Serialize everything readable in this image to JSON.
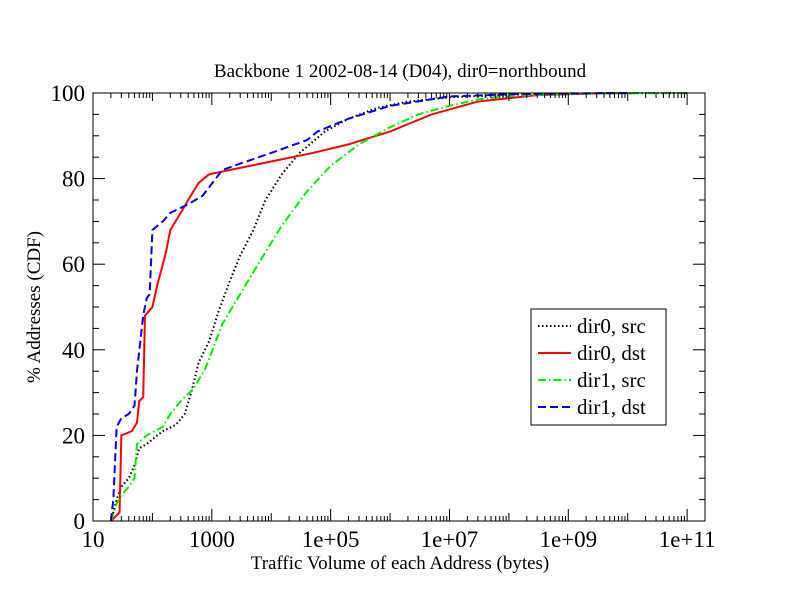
{
  "chart_data": {
    "type": "line",
    "title": "Backbone 1 2002-08-14 (D04), dir0=northbound",
    "xlabel": "Traffic Volume of each Address (bytes)",
    "ylabel": "% Addresses (CDF)",
    "x_scale": "log",
    "xlim": [
      10,
      200000000000
    ],
    "ylim": [
      0,
      100
    ],
    "x_ticks": [
      10,
      1000,
      100000,
      10000000,
      1000000000,
      100000000000
    ],
    "x_tick_labels": [
      "10",
      "1000",
      "1e+05",
      "1e+07",
      "1e+09",
      "1e+11"
    ],
    "y_ticks": [
      0,
      20,
      40,
      60,
      80,
      100
    ],
    "y_tick_labels": [
      "0",
      "20",
      "40",
      "60",
      "80",
      "100"
    ],
    "grid": false,
    "legend_position": "right",
    "series": [
      {
        "name": "dir0, src",
        "color": "#000000",
        "dash": "dotted",
        "points": [
          [
            20,
            0
          ],
          [
            22,
            2
          ],
          [
            25,
            5
          ],
          [
            30,
            8
          ],
          [
            40,
            10
          ],
          [
            50,
            13
          ],
          [
            60,
            17
          ],
          [
            80,
            18
          ],
          [
            150,
            21
          ],
          [
            250,
            22.5
          ],
          [
            350,
            25
          ],
          [
            450,
            30
          ],
          [
            600,
            37
          ],
          [
            900,
            42
          ],
          [
            1300,
            49
          ],
          [
            2000,
            56
          ],
          [
            3000,
            62
          ],
          [
            5000,
            68
          ],
          [
            8000,
            75
          ],
          [
            15000,
            81
          ],
          [
            30000,
            86
          ],
          [
            80000,
            91
          ],
          [
            200000,
            94
          ],
          [
            600000,
            96.5
          ],
          [
            2000000,
            98
          ],
          [
            10000000,
            99
          ],
          [
            100000000,
            99.6
          ],
          [
            1000000000,
            99.85
          ],
          [
            10000000000,
            99.95
          ],
          [
            100000000000,
            100
          ]
        ]
      },
      {
        "name": "dir0, dst",
        "color": "#ff0000",
        "dash": "solid",
        "points": [
          [
            20,
            0
          ],
          [
            28,
            2
          ],
          [
            30,
            20
          ],
          [
            45,
            21
          ],
          [
            55,
            23
          ],
          [
            60,
            28
          ],
          [
            70,
            29
          ],
          [
            75,
            48
          ],
          [
            100,
            50
          ],
          [
            120,
            55
          ],
          [
            150,
            60
          ],
          [
            170,
            63
          ],
          [
            200,
            68
          ],
          [
            300,
            72
          ],
          [
            400,
            75
          ],
          [
            600,
            79
          ],
          [
            900,
            81
          ],
          [
            2000,
            82
          ],
          [
            10000,
            84
          ],
          [
            50000,
            86
          ],
          [
            200000,
            88
          ],
          [
            1000000,
            91
          ],
          [
            5000000,
            95
          ],
          [
            30000000,
            98
          ],
          [
            300000000,
            99.5
          ],
          [
            3000000000,
            99.9
          ],
          [
            10000000000,
            100
          ]
        ]
      },
      {
        "name": "dir1, src",
        "color": "#00ee00",
        "dash": "dashdot",
        "points": [
          [
            20,
            0
          ],
          [
            25,
            4
          ],
          [
            30,
            6
          ],
          [
            40,
            8
          ],
          [
            50,
            10
          ],
          [
            55,
            18
          ],
          [
            80,
            20
          ],
          [
            150,
            22
          ],
          [
            200,
            25
          ],
          [
            300,
            28
          ],
          [
            500,
            31
          ],
          [
            800,
            36
          ],
          [
            1500,
            46
          ],
          [
            3000,
            53
          ],
          [
            6000,
            60
          ],
          [
            15000,
            69
          ],
          [
            40000,
            77
          ],
          [
            100000,
            83
          ],
          [
            300000,
            88
          ],
          [
            1000000,
            92
          ],
          [
            3000000,
            95
          ],
          [
            10000000,
            97
          ],
          [
            30000000,
            98.5
          ],
          [
            100000000,
            99.3
          ],
          [
            1000000000,
            99.8
          ],
          [
            10000000000,
            99.95
          ],
          [
            100000000000,
            100
          ]
        ]
      },
      {
        "name": "dir1, dst",
        "color": "#0000ff",
        "dash": "dashed",
        "points": [
          [
            20,
            0
          ],
          [
            22,
            5
          ],
          [
            25,
            22
          ],
          [
            30,
            24
          ],
          [
            40,
            25
          ],
          [
            50,
            27
          ],
          [
            55,
            35
          ],
          [
            70,
            48
          ],
          [
            80,
            52
          ],
          [
            90,
            53
          ],
          [
            100,
            68
          ],
          [
            150,
            70
          ],
          [
            200,
            72
          ],
          [
            400,
            74
          ],
          [
            700,
            76
          ],
          [
            1500,
            82
          ],
          [
            3000,
            83.5
          ],
          [
            10000,
            86
          ],
          [
            40000,
            89
          ],
          [
            60000,
            91
          ],
          [
            200000,
            94
          ],
          [
            1000000,
            97
          ],
          [
            10000000,
            99.2
          ],
          [
            100000000,
            99.7
          ],
          [
            1000000000,
            99.9
          ],
          [
            10000000000,
            100
          ]
        ]
      }
    ]
  }
}
